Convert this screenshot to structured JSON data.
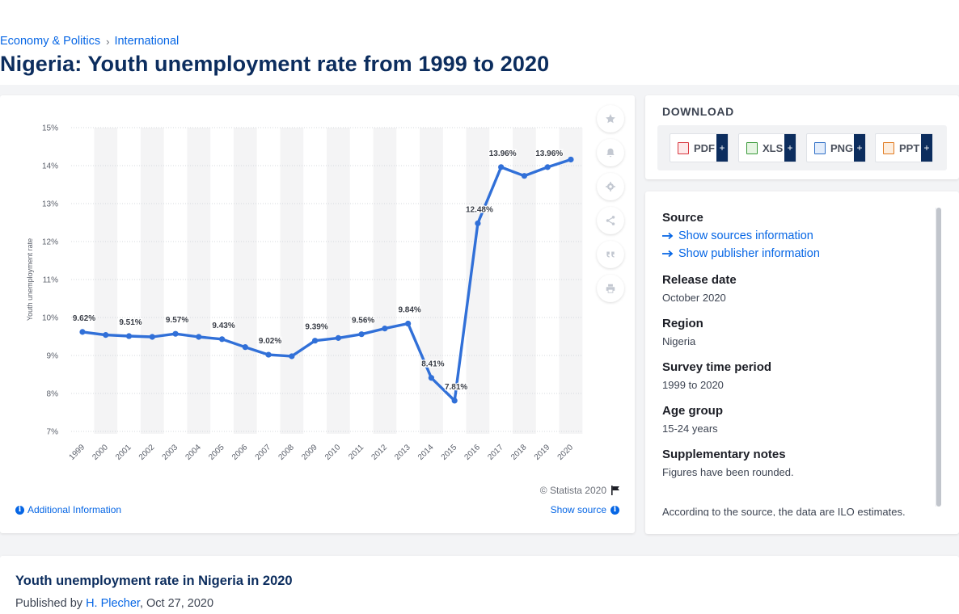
{
  "breadcrumb": {
    "item1": "Economy & Politics",
    "separator": "›",
    "item2": "International"
  },
  "page_title": "Nigeria: Youth unemployment rate from 1999 to 2020",
  "chart_data": {
    "type": "line",
    "title": "",
    "xlabel": "",
    "ylabel": "Youth unemployment rate",
    "ylim": [
      7,
      15
    ],
    "yticks": [
      "7%",
      "8%",
      "9%",
      "10%",
      "11%",
      "12%",
      "13%",
      "14%",
      "15%"
    ],
    "categories": [
      "1999",
      "2000",
      "2001",
      "2002",
      "2003",
      "2004",
      "2005",
      "2006",
      "2007",
      "2008",
      "2009",
      "2010",
      "2011",
      "2012",
      "2013",
      "2014",
      "2015",
      "2016",
      "2017",
      "2018",
      "2019",
      "2020"
    ],
    "series": [
      {
        "values": [
          9.62,
          9.54,
          9.51,
          9.49,
          9.57,
          9.49,
          9.43,
          9.22,
          9.02,
          8.98,
          9.39,
          9.46,
          9.56,
          9.71,
          9.84,
          8.41,
          7.81,
          12.48,
          13.96,
          13.73,
          13.96,
          14.16
        ]
      }
    ],
    "data_labels": [
      {
        "x": "1999",
        "text": "9.62%"
      },
      {
        "x": "2001",
        "text": "9.51%"
      },
      {
        "x": "2003",
        "text": "9.57%"
      },
      {
        "x": "2005",
        "text": "9.43%"
      },
      {
        "x": "2007",
        "text": "9.02%"
      },
      {
        "x": "2009",
        "text": "9.39%"
      },
      {
        "x": "2011",
        "text": "9.56%"
      },
      {
        "x": "2013",
        "text": "9.84%"
      },
      {
        "x": "2014",
        "text": "8.41%"
      },
      {
        "x": "2015",
        "text": "7.81%"
      },
      {
        "x": "2016",
        "text": "12.48%"
      },
      {
        "x": "2017",
        "text": "13.96%"
      },
      {
        "x": "2019",
        "text": "13.96%"
      }
    ],
    "line_color": "#3170d8",
    "grid": true,
    "legend": "none"
  },
  "chart_footer": {
    "additional_info": "Additional Information",
    "copyright": "© Statista 2020",
    "show_source": "Show source"
  },
  "side_tools": [
    {
      "icon": "star-icon"
    },
    {
      "icon": "bell-icon"
    },
    {
      "icon": "gear-icon"
    },
    {
      "icon": "share-icon"
    },
    {
      "icon": "quote-icon"
    },
    {
      "icon": "print-icon"
    }
  ],
  "download": {
    "title": "DOWNLOAD",
    "buttons": [
      {
        "label": "PDF",
        "plus": "+",
        "color": "#d9363e"
      },
      {
        "label": "XLS",
        "plus": "+",
        "color": "#3a9a3a"
      },
      {
        "label": "PNG",
        "plus": "+",
        "color": "#2f6fc6"
      },
      {
        "label": "PPT",
        "plus": "+",
        "color": "#e07a1f"
      }
    ]
  },
  "info": {
    "source_label": "Source",
    "show_sources": "Show sources information",
    "show_publisher": "Show publisher information",
    "release_label": "Release date",
    "release_value": "October 2020",
    "region_label": "Region",
    "region_value": "Nigeria",
    "survey_label": "Survey time period",
    "survey_value": "1999 to 2020",
    "age_label": "Age group",
    "age_value": "15-24 years",
    "supp_label": "Supplementary notes",
    "supp_value": "Figures have been rounded.",
    "supp_note": "According to the source, the data are ILO estimates."
  },
  "bottom": {
    "title": "Youth unemployment rate in Nigeria in 2020",
    "published_prefix": "Published by",
    "author": "H. Plecher",
    "date": ", Oct 27, 2020"
  }
}
